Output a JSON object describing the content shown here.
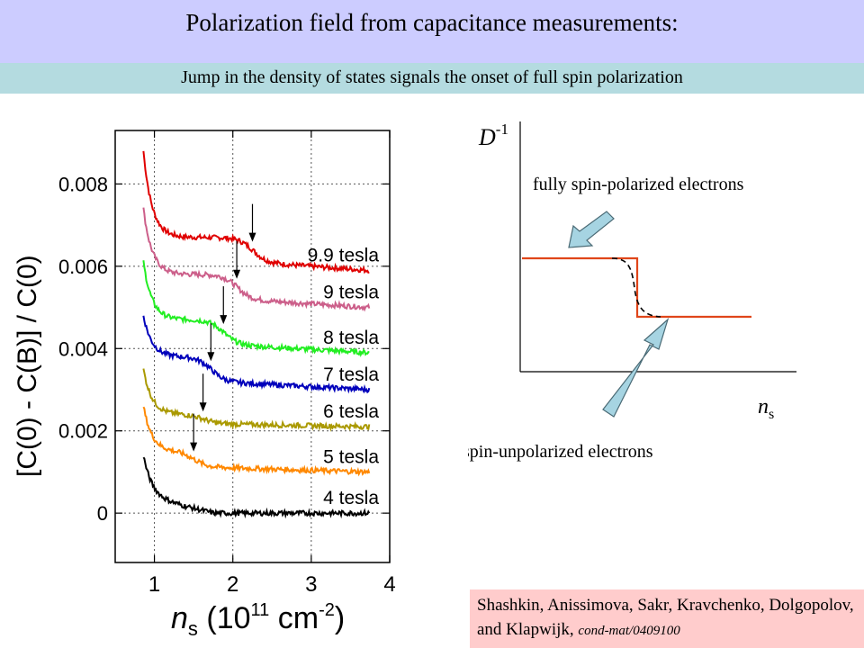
{
  "header": {
    "title": "Polarization field from capacitance measurements:",
    "subtitle": "Jump in the density of states signals the onset of full spin polarization"
  },
  "left_plot": {
    "ylabel": "[C(0) - C(B)] / C(0)",
    "xlabel_main": "n",
    "xlabel_sub": "s",
    "xlabel_rest": " (10",
    "xlabel_exp": "11",
    "xlabel_unit": " cm",
    "xlabel_unit_exp": "-2",
    "xlabel_close": ")"
  },
  "right_plot": {
    "ylabel": "D",
    "ylabel_exp": "-1",
    "xlabel": "n",
    "xlabel_sub": "s",
    "label_polarized": "fully spin-polarized electrons",
    "label_unpolarized": "spin-unpolarized electrons",
    "line_color": "#e0461a"
  },
  "citation": {
    "authors": "Shashkin, Anissimova, Sakr, Kravchenko, Dolgopolov, and Klapwijk, ",
    "ref": "cond-mat/0409100"
  },
  "chart_data": {
    "type": "line",
    "x_range": [
      0.5,
      4.0
    ],
    "y_range": [
      -0.0012,
      0.0093
    ],
    "x_ticks": [
      "1",
      "2",
      "3",
      "4"
    ],
    "y_ticks": [
      "0",
      "0.002",
      "0.004",
      "0.006",
      "0.008"
    ],
    "grid": true,
    "series": [
      {
        "name": "9.9 tesla",
        "color": "#e00000",
        "start": 0.0088,
        "plateau": 0.0067,
        "end": 0.0059,
        "onset": 2.25
      },
      {
        "name": "9 tesla",
        "color": "#cc5f8a",
        "start": 0.0074,
        "plateau": 0.0058,
        "end": 0.005,
        "onset": 2.05
      },
      {
        "name": "8 tesla",
        "color": "#22ee22",
        "start": 0.0061,
        "plateau": 0.0047,
        "end": 0.0039,
        "onset": 1.88
      },
      {
        "name": "7 tesla",
        "color": "#0000bb",
        "start": 0.0048,
        "plateau": 0.0038,
        "end": 0.003,
        "onset": 1.72
      },
      {
        "name": "6 tesla",
        "color": "#aa9900",
        "start": 0.0035,
        "plateau": 0.0024,
        "end": 0.0021,
        "onset": 1.62
      },
      {
        "name": "5 tesla",
        "color": "#ff8800",
        "start": 0.0026,
        "plateau": 0.0015,
        "end": 0.001,
        "onset": 1.5
      },
      {
        "name": "4 tesla",
        "color": "#000000",
        "start": 0.0014,
        "plateau": 0.0004,
        "end": 0.0,
        "onset": 0
      }
    ]
  }
}
